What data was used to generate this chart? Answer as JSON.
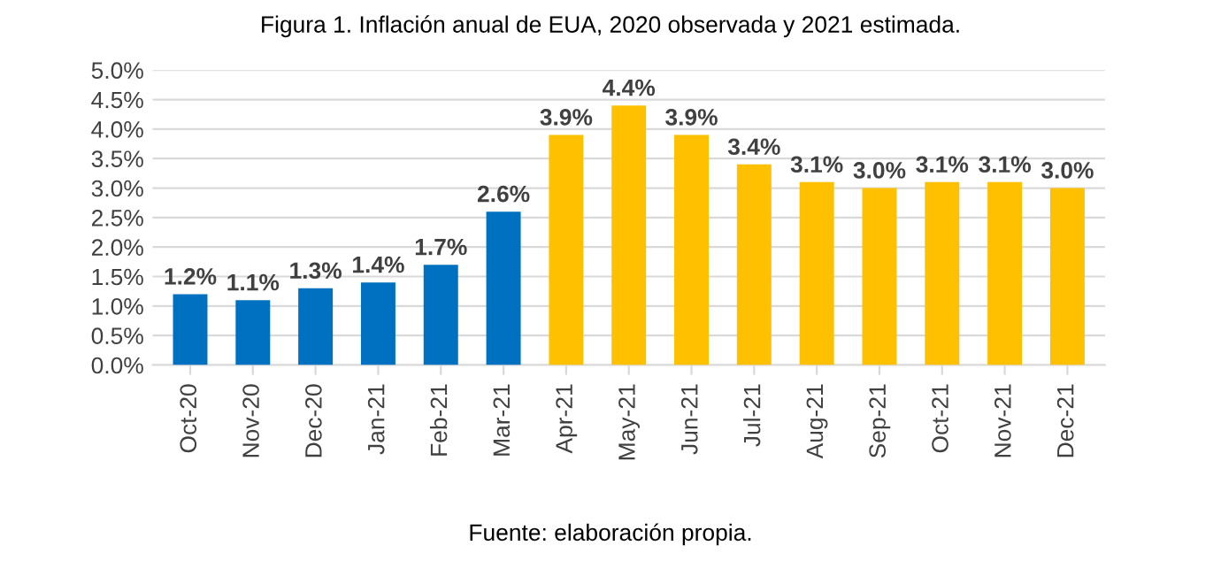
{
  "chart_data": {
    "type": "bar",
    "title": "Figura 1. Inflación anual de EUA, 2020 observada y 2021 estimada.",
    "categories": [
      "Oct-20",
      "Nov-20",
      "Dec-20",
      "Jan-21",
      "Feb-21",
      "Mar-21",
      "Apr-21",
      "May-21",
      "Jun-21",
      "Jul-21",
      "Aug-21",
      "Sep-21",
      "Oct-21",
      "Nov-21",
      "Dec-21"
    ],
    "values": [
      1.2,
      1.1,
      1.3,
      1.4,
      1.7,
      2.6,
      3.9,
      4.4,
      3.9,
      3.4,
      3.1,
      3.0,
      3.1,
      3.1,
      3.0
    ],
    "value_labels": [
      "1.2%",
      "1.1%",
      "1.3%",
      "1.4%",
      "1.7%",
      "2.6%",
      "3.9%",
      "4.4%",
      "3.9%",
      "3.4%",
      "3.1%",
      "3.0%",
      "3.1%",
      "3.1%",
      "3.0%"
    ],
    "colors": [
      "#0070c0",
      "#0070c0",
      "#0070c0",
      "#0070c0",
      "#0070c0",
      "#0070c0",
      "#ffc000",
      "#ffc000",
      "#ffc000",
      "#ffc000",
      "#ffc000",
      "#ffc000",
      "#ffc000",
      "#ffc000",
      "#ffc000"
    ],
    "ylim": [
      0,
      5
    ],
    "yticks": [
      {
        "value": 0,
        "label": "0.0%"
      },
      {
        "value": 0.5,
        "label": "0.5%"
      },
      {
        "value": 1,
        "label": "1.0%"
      },
      {
        "value": 1.5,
        "label": "1.5%"
      },
      {
        "value": 2,
        "label": "2.0%"
      },
      {
        "value": 2.5,
        "label": "2.5%"
      },
      {
        "value": 3,
        "label": "3.0%"
      },
      {
        "value": 3.5,
        "label": "3.5%"
      },
      {
        "value": 4,
        "label": "4.0%"
      },
      {
        "value": 4.5,
        "label": "4.5%"
      },
      {
        "value": 5,
        "label": "5.0%"
      }
    ],
    "grid": "y",
    "annotations": [
      "Fuente: elaboración propia."
    ]
  }
}
